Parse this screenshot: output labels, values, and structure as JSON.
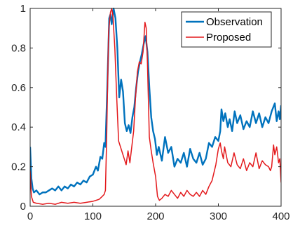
{
  "chart_data": {
    "type": "line",
    "title": "",
    "xlabel": "",
    "ylabel": "",
    "xlim": [
      0,
      400
    ],
    "ylim": [
      0,
      1
    ],
    "xticks": [
      0,
      100,
      200,
      300,
      400
    ],
    "xtick_labels": [
      "0",
      "100",
      "200",
      "300",
      "400"
    ],
    "yticks": [
      0,
      0.2,
      0.4,
      0.6,
      0.8,
      1
    ],
    "ytick_labels": [
      "0",
      "0.2",
      "0.4",
      "0.6",
      "0.8",
      "1"
    ],
    "grid": false,
    "legend_position": "top-right",
    "series": [
      {
        "name": "Observation",
        "color": "#0072BD",
        "points": [
          [
            0,
            0.3
          ],
          [
            2,
            0.14
          ],
          [
            4,
            0.09
          ],
          [
            6,
            0.07
          ],
          [
            10,
            0.08
          ],
          [
            15,
            0.06
          ],
          [
            20,
            0.07
          ],
          [
            25,
            0.07
          ],
          [
            30,
            0.08
          ],
          [
            35,
            0.09
          ],
          [
            40,
            0.08
          ],
          [
            45,
            0.1
          ],
          [
            50,
            0.08
          ],
          [
            55,
            0.1
          ],
          [
            60,
            0.09
          ],
          [
            65,
            0.11
          ],
          [
            70,
            0.1
          ],
          [
            75,
            0.12
          ],
          [
            80,
            0.11
          ],
          [
            85,
            0.13
          ],
          [
            90,
            0.12
          ],
          [
            95,
            0.15
          ],
          [
            100,
            0.16
          ],
          [
            105,
            0.2
          ],
          [
            108,
            0.18
          ],
          [
            112,
            0.25
          ],
          [
            115,
            0.24
          ],
          [
            118,
            0.32
          ],
          [
            120,
            0.3
          ],
          [
            123,
            0.6
          ],
          [
            126,
            0.95
          ],
          [
            128,
            0.97
          ],
          [
            130,
            0.92
          ],
          [
            133,
            1.0
          ],
          [
            136,
            0.95
          ],
          [
            139,
            0.8
          ],
          [
            142,
            0.55
          ],
          [
            145,
            0.64
          ],
          [
            148,
            0.58
          ],
          [
            151,
            0.42
          ],
          [
            154,
            0.38
          ],
          [
            157,
            0.41
          ],
          [
            160,
            0.37
          ],
          [
            163,
            0.45
          ],
          [
            166,
            0.5
          ],
          [
            169,
            0.6
          ],
          [
            172,
            0.68
          ],
          [
            175,
            0.73
          ],
          [
            178,
            0.77
          ],
          [
            181,
            0.82
          ],
          [
            184,
            0.86
          ],
          [
            187,
            0.78
          ],
          [
            190,
            0.6
          ],
          [
            193,
            0.45
          ],
          [
            196,
            0.38
          ],
          [
            199,
            0.34
          ],
          [
            202,
            0.26
          ],
          [
            205,
            0.3
          ],
          [
            210,
            0.23
          ],
          [
            215,
            0.35
          ],
          [
            220,
            0.27
          ],
          [
            225,
            0.3
          ],
          [
            230,
            0.2
          ],
          [
            235,
            0.24
          ],
          [
            240,
            0.22
          ],
          [
            245,
            0.27
          ],
          [
            250,
            0.2
          ],
          [
            255,
            0.29
          ],
          [
            260,
            0.24
          ],
          [
            265,
            0.22
          ],
          [
            270,
            0.27
          ],
          [
            275,
            0.21
          ],
          [
            280,
            0.24
          ],
          [
            285,
            0.32
          ],
          [
            290,
            0.3
          ],
          [
            295,
            0.35
          ],
          [
            300,
            0.33
          ],
          [
            303,
            0.38
          ],
          [
            305,
            0.49
          ],
          [
            308,
            0.43
          ],
          [
            311,
            0.47
          ],
          [
            315,
            0.4
          ],
          [
            318,
            0.44
          ],
          [
            322,
            0.38
          ],
          [
            326,
            0.48
          ],
          [
            330,
            0.42
          ],
          [
            335,
            0.46
          ],
          [
            340,
            0.39
          ],
          [
            345,
            0.43
          ],
          [
            350,
            0.4
          ],
          [
            355,
            0.48
          ],
          [
            360,
            0.42
          ],
          [
            365,
            0.47
          ],
          [
            370,
            0.4
          ],
          [
            375,
            0.45
          ],
          [
            380,
            0.42
          ],
          [
            385,
            0.48
          ],
          [
            390,
            0.52
          ],
          [
            393,
            0.43
          ],
          [
            396,
            0.48
          ],
          [
            398,
            0.44
          ],
          [
            400,
            0.51
          ]
        ]
      },
      {
        "name": "Proposed",
        "color": "#E3191C",
        "points": [
          [
            0,
            0.18
          ],
          [
            2,
            0.05
          ],
          [
            5,
            0.02
          ],
          [
            10,
            0.015
          ],
          [
            20,
            0.01
          ],
          [
            30,
            0.015
          ],
          [
            40,
            0.01
          ],
          [
            50,
            0.02
          ],
          [
            60,
            0.015
          ],
          [
            70,
            0.02
          ],
          [
            80,
            0.015
          ],
          [
            90,
            0.02
          ],
          [
            100,
            0.025
          ],
          [
            105,
            0.03
          ],
          [
            110,
            0.035
          ],
          [
            115,
            0.05
          ],
          [
            118,
            0.06
          ],
          [
            120,
            0.08
          ],
          [
            122,
            0.35
          ],
          [
            125,
            0.88
          ],
          [
            128,
            0.98
          ],
          [
            130,
            1.0
          ],
          [
            132,
            0.96
          ],
          [
            135,
            0.8
          ],
          [
            138,
            0.55
          ],
          [
            141,
            0.33
          ],
          [
            144,
            0.3
          ],
          [
            147,
            0.27
          ],
          [
            150,
            0.24
          ],
          [
            153,
            0.21
          ],
          [
            156,
            0.28
          ],
          [
            159,
            0.22
          ],
          [
            162,
            0.3
          ],
          [
            165,
            0.38
          ],
          [
            168,
            0.55
          ],
          [
            171,
            0.68
          ],
          [
            174,
            0.73
          ],
          [
            177,
            0.72
          ],
          [
            180,
            0.78
          ],
          [
            183,
            0.93
          ],
          [
            185,
            0.9
          ],
          [
            187,
            0.72
          ],
          [
            190,
            0.35
          ],
          [
            193,
            0.28
          ],
          [
            196,
            0.22
          ],
          [
            200,
            0.15
          ],
          [
            203,
            0.05
          ],
          [
            206,
            0.03
          ],
          [
            210,
            0.04
          ],
          [
            215,
            0.06
          ],
          [
            220,
            0.05
          ],
          [
            225,
            0.08
          ],
          [
            230,
            0.06
          ],
          [
            235,
            0.04
          ],
          [
            240,
            0.07
          ],
          [
            245,
            0.05
          ],
          [
            250,
            0.08
          ],
          [
            255,
            0.06
          ],
          [
            260,
            0.05
          ],
          [
            265,
            0.07
          ],
          [
            270,
            0.05
          ],
          [
            275,
            0.08
          ],
          [
            280,
            0.06
          ],
          [
            285,
            0.1
          ],
          [
            290,
            0.13
          ],
          [
            293,
            0.17
          ],
          [
            296,
            0.21
          ],
          [
            300,
            0.29
          ],
          [
            303,
            0.32
          ],
          [
            305,
            0.28
          ],
          [
            308,
            0.24
          ],
          [
            310,
            0.3
          ],
          [
            315,
            0.22
          ],
          [
            320,
            0.2
          ],
          [
            325,
            0.27
          ],
          [
            330,
            0.21
          ],
          [
            335,
            0.19
          ],
          [
            340,
            0.24
          ],
          [
            345,
            0.18
          ],
          [
            350,
            0.22
          ],
          [
            355,
            0.2
          ],
          [
            360,
            0.27
          ],
          [
            365,
            0.19
          ],
          [
            370,
            0.23
          ],
          [
            375,
            0.21
          ],
          [
            380,
            0.2
          ],
          [
            383,
            0.18
          ],
          [
            385,
            0.2
          ],
          [
            388,
            0.31
          ],
          [
            390,
            0.26
          ],
          [
            393,
            0.3
          ],
          [
            396,
            0.22
          ],
          [
            398,
            0.24
          ],
          [
            400,
            0.12
          ]
        ]
      }
    ]
  }
}
